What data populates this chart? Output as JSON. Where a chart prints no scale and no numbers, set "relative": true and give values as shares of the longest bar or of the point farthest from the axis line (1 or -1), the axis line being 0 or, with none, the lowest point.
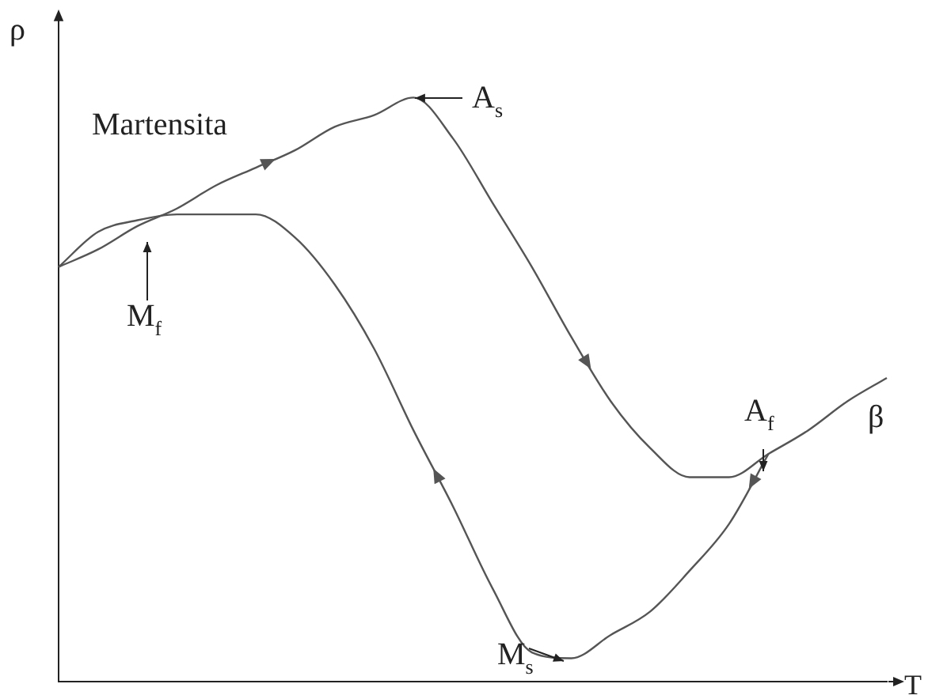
{
  "chart_data": {
    "type": "line",
    "relative": true,
    "xlabel": "T",
    "ylabel": "ρ",
    "marker": "none",
    "line_style": "solid",
    "legend": false,
    "grid": false,
    "categories": [
      null,
      null,
      null,
      null,
      null,
      null,
      null,
      null,
      null,
      null,
      null,
      null,
      null,
      null,
      null,
      null,
      null,
      null,
      null,
      null,
      null,
      null
    ],
    "series": [
      {
        "color": "#555555",
        "values": [
          0.71,
          0.74,
          0.78,
          0.81,
          0.85,
          0.88,
          0.91,
          0.95,
          0.97,
          1,
          0.93,
          0.82,
          0.71,
          0.59,
          0.48,
          0.4,
          0.35,
          0.35,
          0.39,
          0.43,
          0.48,
          0.52
        ]
      },
      {
        "color": "#555555",
        "values": [
          0.71,
          0.77,
          0.79,
          0.8,
          0.8,
          0.8,
          0.76,
          0.68,
          0.57,
          0.43,
          0.3,
          0.16,
          0.05,
          0.04,
          0.08,
          0.12,
          0.19,
          0.27,
          0.39,
          null,
          null,
          null
        ]
      }
    ],
    "annotations": [
      "Martensita",
      "A$_{s}$",
      "M$_{f}$",
      "A$_{f}$",
      "β",
      "M$_{s}$"
    ]
  }
}
